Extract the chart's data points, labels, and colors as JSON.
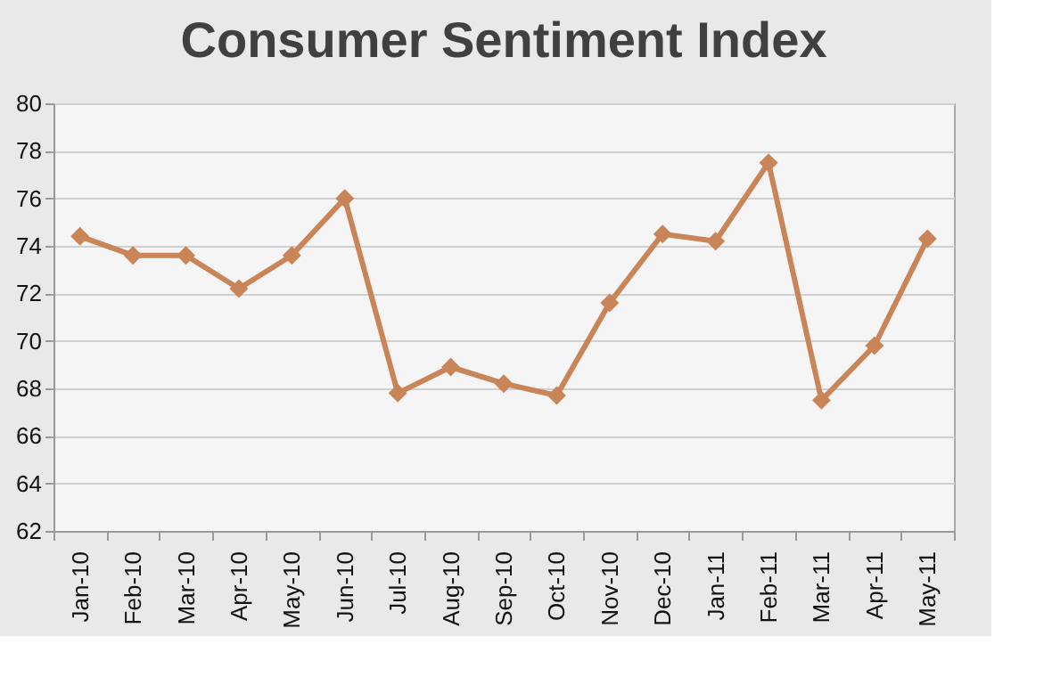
{
  "chart_data": {
    "type": "line",
    "title": "Consumer Sentiment Index",
    "categories": [
      "Jan-10",
      "Feb-10",
      "Mar-10",
      "Apr-10",
      "May-10",
      "Jun-10",
      "Jul-10",
      "Aug-10",
      "Sep-10",
      "Oct-10",
      "Nov-10",
      "Dec-10",
      "Jan-11",
      "Feb-11",
      "Mar-11",
      "Apr-11",
      "May-11"
    ],
    "series": [
      {
        "color": "#c98558",
        "values": [
          74.4,
          73.6,
          73.6,
          72.2,
          73.6,
          76.0,
          67.8,
          68.9,
          68.2,
          67.7,
          71.6,
          74.5,
          74.2,
          77.5,
          67.5,
          69.8,
          74.3
        ]
      }
    ],
    "ylim": [
      62,
      80
    ],
    "yticks": [
      62,
      64,
      66,
      68,
      70,
      72,
      74,
      76,
      78,
      80
    ],
    "grid": "y",
    "marker": "diamond",
    "line_style": "solid",
    "legend": false
  }
}
